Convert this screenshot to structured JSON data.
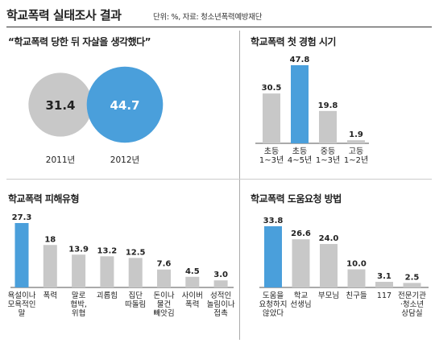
{
  "header": {
    "title": "학교폭력 실태조사 결과",
    "source": "단위: %, 자료: 청소년폭력예방재단"
  },
  "chart_data": [
    {
      "type": "bubble",
      "title": "“학교폭력 당한 뒤 자살을 생각했다”",
      "categories": [
        "2011년",
        "2012년"
      ],
      "values": [
        31.4,
        44.7
      ],
      "colors": [
        "#c8c8c8",
        "#4a9fdb"
      ]
    },
    {
      "type": "bar",
      "title": "학교폭력 첫 경험 시기",
      "categories": [
        [
          "초등",
          "1~3년"
        ],
        [
          "초등",
          "4~5년"
        ],
        [
          "중등",
          "1~3년"
        ],
        [
          "고등",
          "1~2년"
        ]
      ],
      "values": [
        30.5,
        47.8,
        19.8,
        1.9
      ],
      "highlight": 1
    },
    {
      "type": "bar",
      "title": "학교폭력 피해유형",
      "categories": [
        [
          "욕설이나",
          "모욕적인",
          "말"
        ],
        [
          "폭력"
        ],
        [
          "말로",
          "협박,",
          "위협"
        ],
        [
          "괴롭힘"
        ],
        [
          "집단",
          "따돌림"
        ],
        [
          "돈이나",
          "물건",
          "빼앗김"
        ],
        [
          "사이버",
          "폭력"
        ],
        [
          "성적인",
          "놀림이나",
          "접촉"
        ]
      ],
      "values": [
        27.3,
        18,
        13.9,
        13.2,
        12.5,
        7.6,
        4.5,
        3.0
      ],
      "value_labels": [
        "27.3",
        "18",
        "13.9",
        "13.2",
        "12.5",
        "7.6",
        "4.5",
        "3.0"
      ],
      "highlight": 0
    },
    {
      "type": "bar",
      "title": "학교폭력 도움요청 방법",
      "categories": [
        [
          "도움을",
          "요청하지",
          "않았다"
        ],
        [
          "학교",
          "선생님"
        ],
        [
          "부모님"
        ],
        [
          "친구들"
        ],
        [
          "117"
        ],
        [
          "전문기관",
          "·청소년",
          "상담실"
        ]
      ],
      "values": [
        33.8,
        26.6,
        24.0,
        10.0,
        3.1,
        2.5
      ],
      "value_labels": [
        "33.8",
        "26.6",
        "24.0",
        "10.0",
        "3.1",
        "2.5"
      ],
      "highlight": 0
    }
  ],
  "colors": {
    "highlight": "#4a9fdb",
    "gray": "#c8c8c8",
    "text": "#222222"
  }
}
